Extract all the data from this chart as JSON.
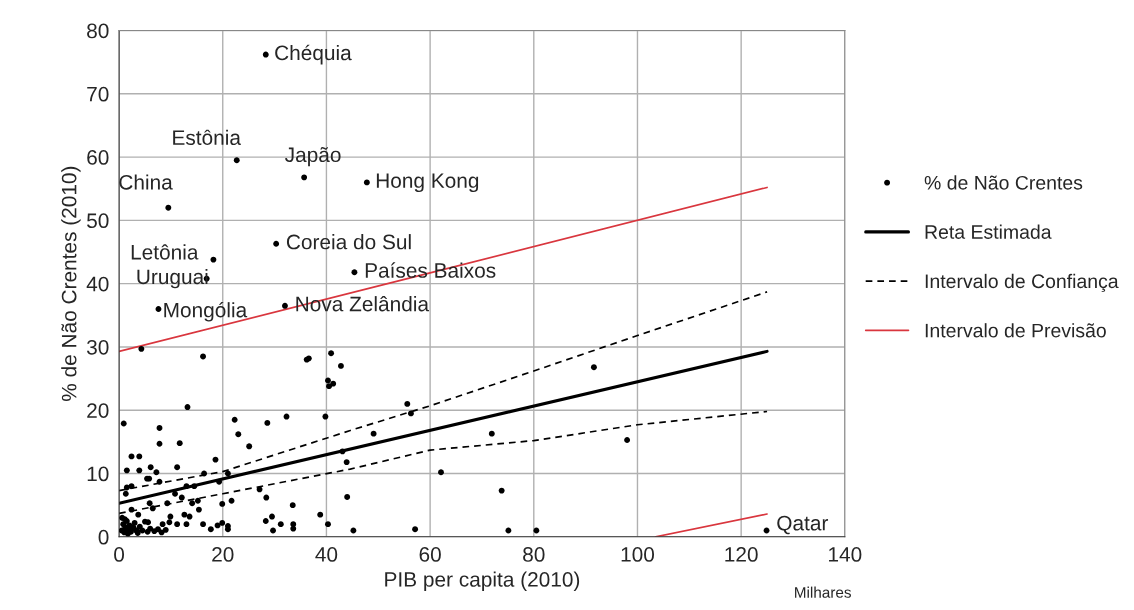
{
  "chart_data": {
    "type": "scatter",
    "xlabel": "PIB per capita (2010)",
    "ylabel": "% de Não Crentes (2010)",
    "xlim": [
      0,
      140
    ],
    "ylim": [
      0,
      80
    ],
    "xticks": [
      0,
      20,
      40,
      60,
      80,
      100,
      120,
      140
    ],
    "yticks": [
      0,
      10,
      20,
      30,
      40,
      50,
      60,
      70,
      80
    ],
    "grid": true,
    "legend": "right",
    "series": [
      {
        "name": "% de Não Crentes",
        "type": "scatter",
        "color": "#000000",
        "marker": "circle",
        "x": [
          28.3,
          22.7,
          35.7,
          47.8,
          9.5,
          18.2,
          16.9,
          7.6,
          30.3,
          45.4,
          32.0,
          124.9,
          4.3,
          16.2,
          13.2,
          0.9,
          7.8,
          7.8,
          11.7,
          22.3,
          23.0,
          25.1,
          28.6,
          32.3,
          39.8,
          36.2,
          36.6,
          40.9,
          42.8,
          40.3,
          41.3,
          40.5,
          2.4,
          3.9,
          1.5,
          3.9,
          6.1,
          5.4,
          5.8,
          7.2,
          7.8,
          11.2,
          18.6,
          16.4,
          21.0,
          19.3,
          2.4,
          1.5,
          1.3,
          13.0,
          14.5,
          10.8,
          9.3,
          12.1,
          14.1,
          15.2,
          15.4,
          5.9,
          6.5,
          2.4,
          3.7,
          21.7,
          19.9,
          27.1,
          28.4,
          33.5,
          38.8,
          44.0,
          28.3,
          29.5,
          29.7,
          31.2,
          33.6,
          33.6,
          40.3,
          9.9,
          9.7,
          12.6,
          13.6,
          5.6,
          8.4,
          11.2,
          13.0,
          16.2,
          17.7,
          19.0,
          19.9,
          21.0,
          21.0,
          55.6,
          56.3,
          49.1,
          71.9,
          91.6,
          43.1,
          43.9,
          62.1,
          73.8,
          45.2,
          57.1,
          75.1,
          80.5,
          98.0,
          0.5,
          0.8,
          1.0,
          1.2,
          1.5,
          1.8,
          2.0,
          2.3,
          2.6,
          3.0,
          3.3,
          3.6,
          4.0,
          4.5,
          5.0,
          5.5,
          6.0,
          6.8,
          7.5,
          8.2,
          9.0,
          0.6,
          1.1,
          1.7,
          2.8,
          3.5
        ],
        "values": [
          76.2,
          59.5,
          56.8,
          56.0,
          52.0,
          43.8,
          40.8,
          36.0,
          46.3,
          41.8,
          36.5,
          1.0,
          29.7,
          28.5,
          20.5,
          17.9,
          17.2,
          14.7,
          14.8,
          18.5,
          16.2,
          14.3,
          18.0,
          19.0,
          19.0,
          28.0,
          28.2,
          29.0,
          27.0,
          24.7,
          24.2,
          23.8,
          12.7,
          12.7,
          10.5,
          10.5,
          11.0,
          9.2,
          9.2,
          10.2,
          8.7,
          11.0,
          12.2,
          10.0,
          10.0,
          8.7,
          8.0,
          7.8,
          6.8,
          8.0,
          8.0,
          6.8,
          5.3,
          6.2,
          5.3,
          5.7,
          4.3,
          5.3,
          4.5,
          4.3,
          3.5,
          5.7,
          5.2,
          7.5,
          6.2,
          5.0,
          3.5,
          6.3,
          2.5,
          3.2,
          1.0,
          2.0,
          2.0,
          1.3,
          2.0,
          3.2,
          2.3,
          3.5,
          3.2,
          2.3,
          2.0,
          2.0,
          2.0,
          2.0,
          1.2,
          1.8,
          2.2,
          1.2,
          1.7,
          21.0,
          19.5,
          16.3,
          16.3,
          26.8,
          13.5,
          11.8,
          10.2,
          7.3,
          1.0,
          1.2,
          1.0,
          1.0,
          15.3,
          1.0,
          2.0,
          0.7,
          1.5,
          2.5,
          1.0,
          1.8,
          0.8,
          1.5,
          2.2,
          1.0,
          0.6,
          1.6,
          1.0,
          2.4,
          0.8,
          1.3,
          0.9,
          1.2,
          0.7,
          1.1,
          3.0,
          2.8,
          0.5,
          1.4,
          0.9
        ]
      },
      {
        "name": "Reta Estimada",
        "type": "line",
        "color": "#000000",
        "line_style": "solid",
        "x": [
          0,
          125
        ],
        "values": [
          5.3,
          29.3
        ]
      },
      {
        "name": "Intervalo de Confiança",
        "type": "line",
        "color": "#000000",
        "line_style": "dashed",
        "x": [
          0,
          20,
          44.6,
          60,
          80,
          100,
          125
        ],
        "values": [
          7.3,
          10.3,
          16.8,
          20.7,
          26.2,
          31.8,
          38.7
        ]
      },
      {
        "type": "line",
        "color": "#000000",
        "line_style": "dashed",
        "x": [
          0,
          20,
          44.6,
          60,
          80,
          100,
          125
        ],
        "values": [
          3.7,
          6.8,
          10.7,
          13.7,
          15.2,
          17.7,
          19.8
        ]
      },
      {
        "name": "Intervalo de Previsão",
        "type": "line",
        "color": "#d9363e",
        "line_style": "solid",
        "x": [
          0,
          60,
          125
        ],
        "values": [
          29.3,
          41.7,
          55.2
        ]
      },
      {
        "type": "line",
        "color": "#d9363e",
        "line_style": "solid",
        "x": [
          103.5,
          125
        ],
        "values": [
          0,
          3.6
        ]
      }
    ],
    "annotations": [
      {
        "text": "Chéquia",
        "x": 28.3,
        "y": 76.2
      },
      {
        "text": "Estônia",
        "x": 22.7,
        "y": 59.5
      },
      {
        "text": "Japão",
        "x": 35.7,
        "y": 56.8
      },
      {
        "text": "Hong Kong",
        "x": 47.8,
        "y": 56.0
      },
      {
        "text": "China",
        "x": 9.5,
        "y": 52.0
      },
      {
        "text": "Letônia",
        "x": 18.2,
        "y": 43.8
      },
      {
        "text": "Uruguai",
        "x": 16.9,
        "y": 40.8
      },
      {
        "text": "Mongólia",
        "x": 7.6,
        "y": 36.0
      },
      {
        "text": "Coreia do Sul",
        "x": 30.3,
        "y": 46.3
      },
      {
        "text": "Países Baixos",
        "x": 45.4,
        "y": 41.8
      },
      {
        "text": "Nova Zelândia",
        "x": 32.0,
        "y": 36.5
      },
      {
        "text": "Qatar",
        "x": 124.9,
        "y": 1.0
      },
      "Milhares"
    ]
  }
}
